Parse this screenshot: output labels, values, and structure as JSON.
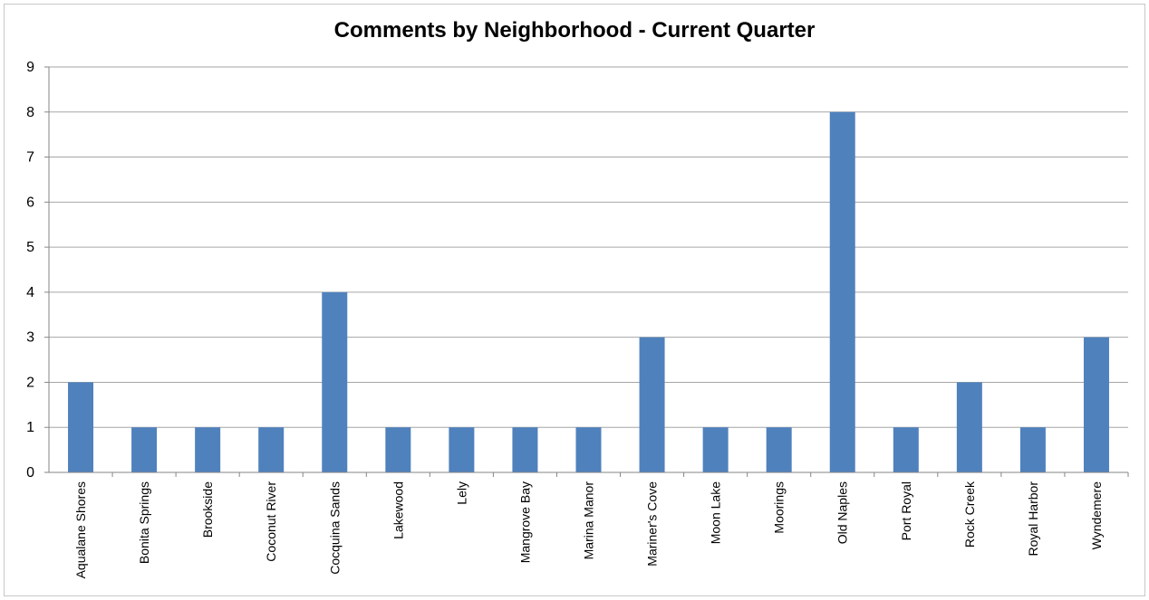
{
  "chart_data": {
    "type": "bar",
    "title": "Comments by Neighborhood  - Current Quarter",
    "xlabel": "",
    "ylabel": "",
    "ylim": [
      0,
      9
    ],
    "yticks": [
      0,
      1,
      2,
      3,
      4,
      5,
      6,
      7,
      8,
      9
    ],
    "grid": true,
    "legend": "none",
    "bar_color": "#4f81bd",
    "categories": [
      "Aqualane Shores",
      "Bonita Springs",
      "Brookside",
      "Coconut River",
      "Cocquina Sands",
      "Lakewood",
      "Lely",
      "Mangrove Bay",
      "Marina Manor",
      "Mariner's Cove",
      "Moon Lake",
      "Moorings",
      "Old Naples",
      "Port Royal",
      "Rock Creek",
      "Royal Harbor",
      "Wyndemere"
    ],
    "values": [
      2,
      1,
      1,
      1,
      4,
      1,
      1,
      1,
      1,
      3,
      1,
      1,
      8,
      1,
      2,
      1,
      3
    ]
  }
}
